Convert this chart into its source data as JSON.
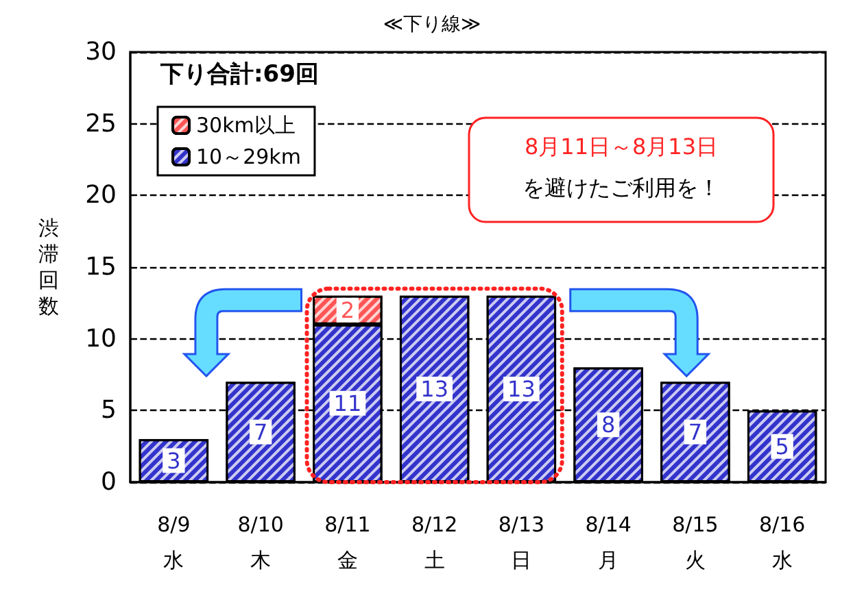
{
  "chart_data": {
    "type": "bar",
    "title": "≪下り線≫",
    "ylabel": "渋滞回数",
    "categories": [
      "8/9\n水",
      "8/10\n木",
      "8/11\n金",
      "8/12\n土",
      "8/13\n日",
      "8/14\n月",
      "8/15\n火",
      "8/16\n水"
    ],
    "series": [
      {
        "name": "10～29km",
        "color": "#3333cc",
        "values": [
          3,
          7,
          11,
          13,
          13,
          8,
          7,
          5
        ]
      },
      {
        "name": "30km以上",
        "color": "#ff5555",
        "values": [
          null,
          null,
          2,
          null,
          null,
          null,
          null,
          null
        ]
      }
    ],
    "stacked": true,
    "data_labels": true,
    "ylim": [
      0,
      30
    ],
    "yticks": [
      0,
      5,
      10,
      15,
      20,
      25,
      30
    ],
    "grid": "y",
    "legend": "top left",
    "annotations": [
      "下り合計:69回",
      "8月11日～8月13日",
      "を避けたご利用を！"
    ]
  }
}
